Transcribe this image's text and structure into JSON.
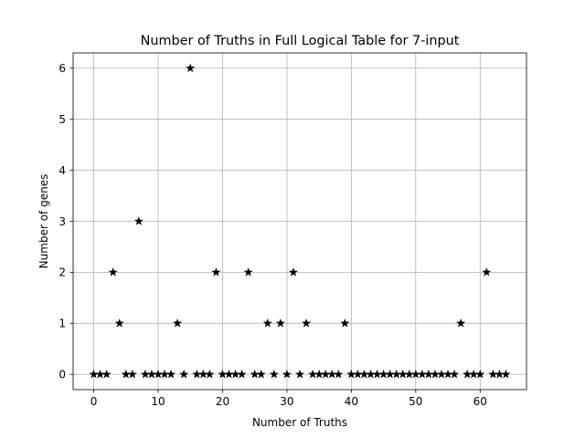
{
  "chart_data": {
    "type": "scatter",
    "title": "Number of Truths in Full Logical Table for 7-input",
    "xlabel": "Number of Truths",
    "ylabel": "Number of genes",
    "xlim": [
      -3.2,
      67.2
    ],
    "ylim": [
      -0.3,
      6.3
    ],
    "xticks": [
      0,
      10,
      20,
      30,
      40,
      50,
      60
    ],
    "yticks": [
      0,
      1,
      2,
      3,
      4,
      5,
      6
    ],
    "grid": true,
    "legend": "none",
    "marker": "star",
    "marker_color": "#000000",
    "grid_color": "#b0b0b0",
    "x": [
      0,
      1,
      2,
      3,
      4,
      5,
      6,
      7,
      8,
      9,
      10,
      11,
      12,
      13,
      14,
      15,
      16,
      17,
      18,
      19,
      20,
      21,
      22,
      23,
      24,
      25,
      26,
      27,
      28,
      29,
      30,
      31,
      32,
      33,
      34,
      35,
      36,
      37,
      38,
      39,
      40,
      41,
      42,
      43,
      44,
      45,
      46,
      47,
      48,
      49,
      50,
      51,
      52,
      53,
      54,
      55,
      56,
      57,
      58,
      59,
      60,
      61,
      62,
      63,
      64
    ],
    "y": [
      0,
      0,
      0,
      2,
      1,
      0,
      0,
      3,
      0,
      0,
      0,
      0,
      0,
      1,
      0,
      6,
      0,
      0,
      0,
      2,
      0,
      0,
      0,
      0,
      2,
      0,
      0,
      1,
      0,
      1,
      0,
      2,
      0,
      1,
      0,
      0,
      0,
      0,
      0,
      1,
      0,
      0,
      0,
      0,
      0,
      0,
      0,
      0,
      0,
      0,
      0,
      0,
      0,
      0,
      0,
      0,
      0,
      1,
      0,
      0,
      0,
      2,
      0,
      0,
      0
    ]
  }
}
